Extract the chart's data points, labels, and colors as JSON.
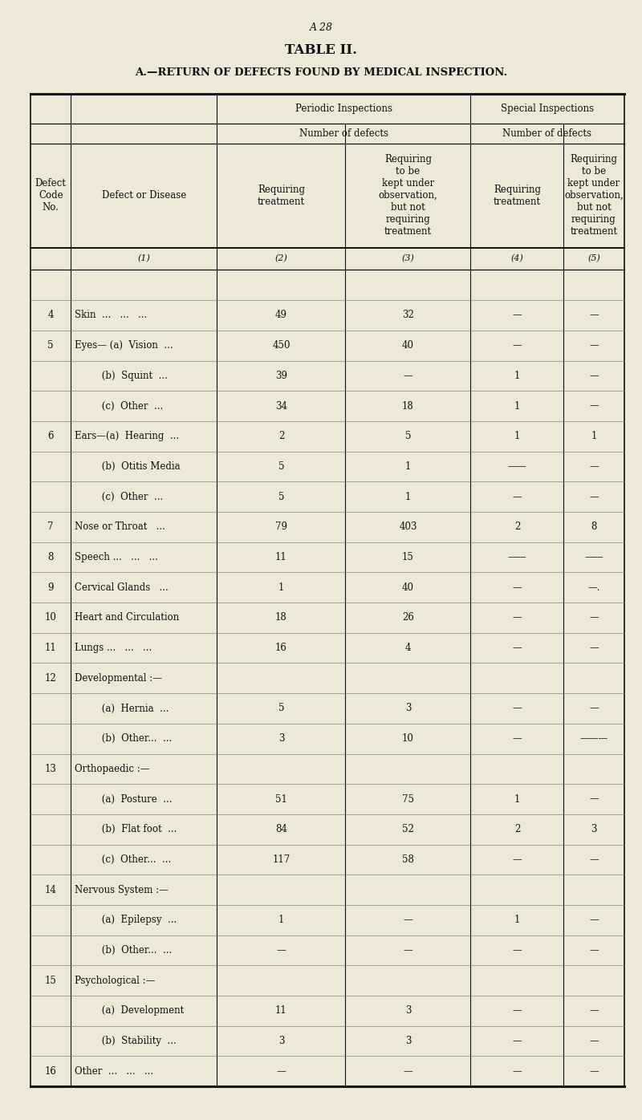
{
  "page_header": "A 28",
  "title": "TABLE II.",
  "subtitle": "A.—RETURN OF DEFECTS FOUND BY MEDICAL INSPECTION.",
  "bg_color": "#ede8d8",
  "font_color": "#111111",
  "line_color": "#111111",
  "header_font_size": 8.5,
  "body_font_size": 8.5,
  "title_font_size": 12,
  "subtitle_font_size": 9.5,
  "rows": [
    {
      "code": "",
      "name": "",
      "c2": "",
      "c3": "",
      "c4": "",
      "c5": "",
      "type": "col_num_row"
    },
    {
      "code": "4",
      "name": "Skin  ...   ...   ...",
      "c2": "49",
      "c3": "32",
      "c4": "—",
      "c5": "—",
      "type": "data"
    },
    {
      "code": "5",
      "name": "Eyes— (a)  Vision  ...",
      "c2": "450",
      "c3": "40",
      "c4": "—",
      "c5": "—",
      "type": "data"
    },
    {
      "code": "",
      "name": "         (b)  Squint  ...",
      "c2": "39",
      "c3": "—",
      "c4": "1",
      "c5": "—",
      "type": "sub"
    },
    {
      "code": "",
      "name": "         (c)  Other  ...",
      "c2": "34",
      "c3": "18",
      "c4": "1",
      "c5": "—",
      "type": "sub"
    },
    {
      "code": "6",
      "name": "Ears—(a)  Hearing  ...",
      "c2": "2",
      "c3": "5",
      "c4": "1",
      "c5": "1",
      "type": "data"
    },
    {
      "code": "",
      "name": "         (b)  Otitis Media",
      "c2": "5",
      "c3": "1",
      "c4": "——",
      "c5": "—",
      "type": "sub"
    },
    {
      "code": "",
      "name": "         (c)  Other  ...",
      "c2": "5",
      "c3": "1",
      "c4": "—",
      "c5": "—",
      "type": "sub"
    },
    {
      "code": "7",
      "name": "Nose or Throat   ...",
      "c2": "79",
      "c3": "403",
      "c4": "2",
      "c5": "8",
      "type": "data"
    },
    {
      "code": "8",
      "name": "Speech ...   ...   ...",
      "c2": "11",
      "c3": "15",
      "c4": "——",
      "c5": "——",
      "type": "data"
    },
    {
      "code": "9",
      "name": "Cervical Glands   ...",
      "c2": "1",
      "c3": "40",
      "c4": "—",
      "c5": "—.",
      "type": "data"
    },
    {
      "code": "10",
      "name": "Heart and Circulation",
      "c2": "18",
      "c3": "26",
      "c4": "—",
      "c5": "—",
      "type": "data"
    },
    {
      "code": "11",
      "name": "Lungs ...   ...   ...",
      "c2": "16",
      "c3": "4",
      "c4": "—",
      "c5": "—",
      "type": "data"
    },
    {
      "code": "12",
      "name": "Developmental :—",
      "c2": "",
      "c3": "",
      "c4": "",
      "c5": "",
      "type": "header_row"
    },
    {
      "code": "",
      "name": "         (a)  Hernia  ...",
      "c2": "5",
      "c3": "3",
      "c4": "—",
      "c5": "—",
      "type": "sub"
    },
    {
      "code": "",
      "name": "         (b)  Other...  ...",
      "c2": "3",
      "c3": "10",
      "c4": "—",
      "c5": "———",
      "type": "sub"
    },
    {
      "code": "13",
      "name": "Orthopaedic :—",
      "c2": "",
      "c3": "",
      "c4": "",
      "c5": "",
      "type": "header_row"
    },
    {
      "code": "",
      "name": "         (a)  Posture  ...",
      "c2": "51",
      "c3": "75",
      "c4": "1",
      "c5": "—",
      "type": "sub"
    },
    {
      "code": "",
      "name": "         (b)  Flat foot  ...",
      "c2": "84",
      "c3": "52",
      "c4": "2",
      "c5": "3",
      "type": "sub"
    },
    {
      "code": "",
      "name": "         (c)  Other...  ...",
      "c2": "117",
      "c3": "58",
      "c4": "—",
      "c5": "—",
      "type": "sub"
    },
    {
      "code": "14",
      "name": "Nervous System :—",
      "c2": "",
      "c3": "",
      "c4": "",
      "c5": "",
      "type": "header_row"
    },
    {
      "code": "",
      "name": "         (a)  Epilepsy  ...",
      "c2": "1",
      "c3": "—",
      "c4": "1",
      "c5": "—",
      "type": "sub"
    },
    {
      "code": "",
      "name": "         (b)  Other...  ...",
      "c2": "—",
      "c3": "—",
      "c4": "—",
      "c5": "—",
      "type": "sub"
    },
    {
      "code": "15",
      "name": "Psychological :—",
      "c2": "",
      "c3": "",
      "c4": "",
      "c5": "",
      "type": "header_row"
    },
    {
      "code": "",
      "name": "         (a)  Development",
      "c2": "11",
      "c3": "3",
      "c4": "—",
      "c5": "—",
      "type": "sub"
    },
    {
      "code": "",
      "name": "         (b)  Stability  ...",
      "c2": "3",
      "c3": "3",
      "c4": "—",
      "c5": "—",
      "type": "sub"
    },
    {
      "code": "16",
      "name": "Other  ...   ...   ...",
      "c2": "—",
      "c3": "—",
      "c4": "—",
      "c5": "—",
      "type": "data"
    }
  ]
}
